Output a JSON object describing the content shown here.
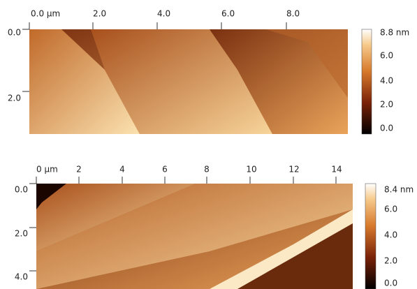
{
  "panels": [
    {
      "x_ticks": [
        "0.0 µm",
        "2.0",
        "4.0",
        "6.0",
        "8.0"
      ],
      "y_ticks": [
        "0.0",
        "2.0"
      ],
      "colorbar_ticks": [
        "8.8 nm",
        "6.0",
        "4.0",
        "2.0",
        "0.0"
      ]
    },
    {
      "x_ticks": [
        "0 µm",
        "2",
        "4",
        "6",
        "8",
        "10",
        "12",
        "14"
      ],
      "y_ticks": [
        "0.0",
        "2.0",
        "4.0"
      ],
      "colorbar_ticks": [
        "8.4 nm",
        "6.0",
        "4.0",
        "2.0",
        "0.0"
      ]
    }
  ]
}
